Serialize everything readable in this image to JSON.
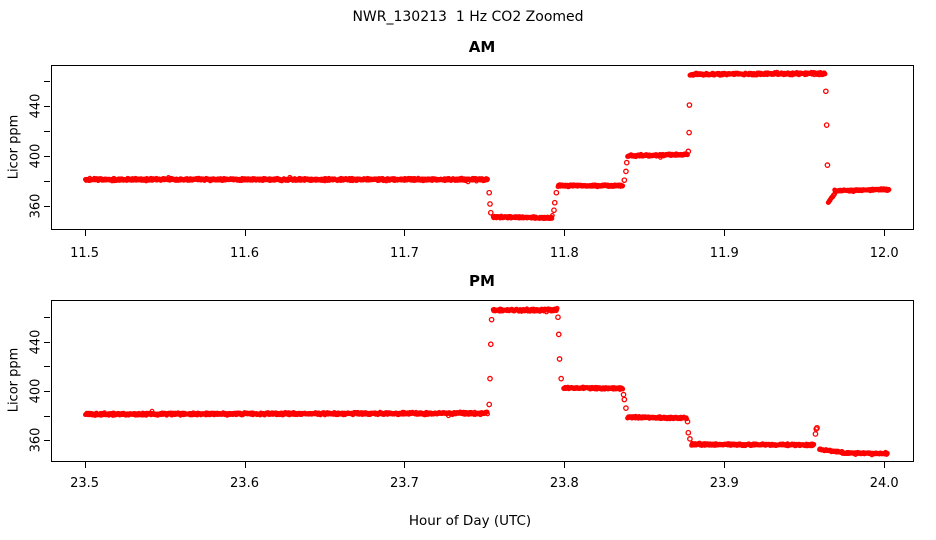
{
  "title": "NWR_130213  1 Hz CO2 Zoomed",
  "xlabel": "Hour of Day (UTC)",
  "colors": {
    "points": "#ff0000",
    "axis": "#000000",
    "text": "#000000",
    "background": "#ffffff"
  },
  "chart_data": [
    {
      "type": "scatter",
      "panel_title": "AM",
      "ylabel": "Licor ppm",
      "marker": "open-circle",
      "grid": false,
      "legend": "none",
      "xlim": [
        11.479,
        12.018
      ],
      "ylim": [
        342,
        473
      ],
      "xticks": [
        11.5,
        11.6,
        11.7,
        11.8,
        11.9,
        12.0
      ],
      "xtick_labels": [
        "11.5",
        "11.6",
        "11.7",
        "11.8",
        "11.9",
        "12.0"
      ],
      "yticks": [
        360,
        380,
        400,
        420,
        440,
        460
      ],
      "ytick_labels": [
        "360",
        "",
        "400",
        "",
        "440",
        ""
      ],
      "segments": [
        {
          "t_start": 11.5005,
          "t_end": 11.752,
          "ppm_start": 381.5,
          "ppm_end": 381.5,
          "noise": 1.2
        },
        {
          "t_start": 11.7555,
          "t_end": 11.7925,
          "ppm_start": 351.5,
          "ppm_end": 351.0,
          "noise": 1.0
        },
        {
          "t_start": 11.796,
          "t_end": 11.8365,
          "ppm_start": 376.5,
          "ppm_end": 376.5,
          "noise": 1.0
        },
        {
          "t_start": 11.8395,
          "t_end": 11.877,
          "ppm_start": 400.5,
          "ppm_end": 401.5,
          "noise": 1.0
        },
        {
          "t_start": 11.8785,
          "t_end": 11.963,
          "ppm_start": 465.5,
          "ppm_end": 466.2,
          "noise": 1.2
        },
        {
          "t_start": 11.965,
          "t_end": 11.969,
          "ppm_start": 363.0,
          "ppm_end": 370.0,
          "noise": 0.8
        },
        {
          "t_start": 11.969,
          "t_end": 12.003,
          "ppm_start": 372.5,
          "ppm_end": 373.5,
          "noise": 0.9
        }
      ],
      "transition_points": [
        [
          11.753,
          371
        ],
        [
          11.7535,
          362
        ],
        [
          11.754,
          355
        ],
        [
          11.7935,
          357
        ],
        [
          11.794,
          363
        ],
        [
          11.795,
          371
        ],
        [
          11.8375,
          381
        ],
        [
          11.8385,
          388
        ],
        [
          11.839,
          395
        ],
        [
          11.8775,
          404
        ],
        [
          11.878,
          419
        ],
        [
          11.8782,
          441
        ],
        [
          11.9635,
          452
        ],
        [
          11.964,
          425
        ],
        [
          11.9645,
          393
        ]
      ]
    },
    {
      "type": "scatter",
      "panel_title": "PM",
      "ylabel": "Licor ppm",
      "marker": "open-circle",
      "grid": false,
      "legend": "none",
      "xlim": [
        23.479,
        24.018
      ],
      "ylim": [
        343,
        474
      ],
      "xticks": [
        23.5,
        23.6,
        23.7,
        23.8,
        23.9,
        24.0
      ],
      "xtick_labels": [
        "23.5",
        "23.6",
        "23.7",
        "23.8",
        "23.9",
        "24.0"
      ],
      "yticks": [
        360,
        380,
        400,
        420,
        440,
        460
      ],
      "ytick_labels": [
        "360",
        "",
        "400",
        "",
        "440",
        ""
      ],
      "segments": [
        {
          "t_start": 23.5005,
          "t_end": 23.752,
          "ppm_start": 381.0,
          "ppm_end": 381.8,
          "noise": 1.2
        },
        {
          "t_start": 23.7555,
          "t_end": 23.7955,
          "ppm_start": 465.5,
          "ppm_end": 466.0,
          "noise": 1.3
        },
        {
          "t_start": 23.7995,
          "t_end": 23.8365,
          "ppm_start": 402.5,
          "ppm_end": 402.0,
          "noise": 1.0
        },
        {
          "t_start": 23.8395,
          "t_end": 23.8765,
          "ppm_start": 378.5,
          "ppm_end": 378.0,
          "noise": 1.0
        },
        {
          "t_start": 23.8795,
          "t_end": 23.956,
          "ppm_start": 356.5,
          "ppm_end": 356.0,
          "noise": 1.0
        },
        {
          "t_start": 23.9595,
          "t_end": 23.974,
          "ppm_start": 352.5,
          "ppm_end": 350.0,
          "noise": 0.8
        },
        {
          "t_start": 23.974,
          "t_end": 24.002,
          "ppm_start": 349.5,
          "ppm_end": 349.0,
          "noise": 0.8
        }
      ],
      "transition_points": [
        [
          23.753,
          389
        ],
        [
          23.7535,
          410
        ],
        [
          23.754,
          438
        ],
        [
          23.7545,
          458
        ],
        [
          23.796,
          460
        ],
        [
          23.7965,
          446
        ],
        [
          23.797,
          426
        ],
        [
          23.798,
          410
        ],
        [
          23.837,
          397
        ],
        [
          23.8375,
          393
        ],
        [
          23.8385,
          386
        ],
        [
          23.877,
          375
        ],
        [
          23.8775,
          366
        ],
        [
          23.8785,
          361
        ],
        [
          23.957,
          365
        ],
        [
          23.9575,
          369
        ],
        [
          23.958,
          370
        ]
      ]
    }
  ]
}
